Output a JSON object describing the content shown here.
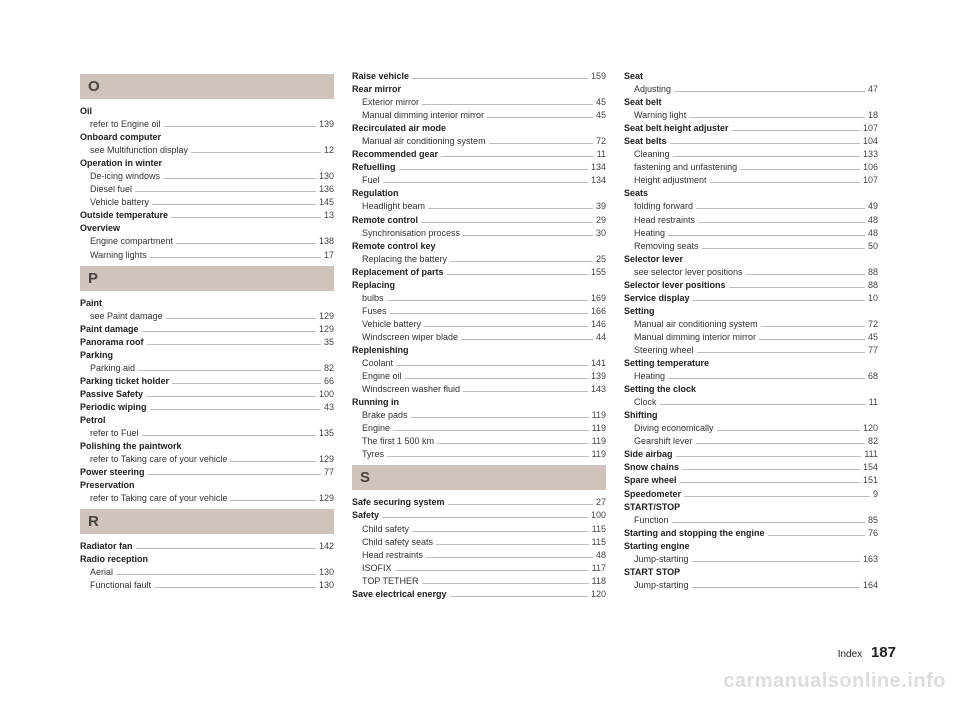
{
  "page_label": "Index",
  "page_number": "187",
  "watermark": "carmanualsonline.info",
  "style": {
    "bg": "#ffffff",
    "letter_bg": "#cfc3bb",
    "letter_fg": "#454545",
    "text_color": "#333333",
    "leader_color": "#bdbdbd",
    "font_size_entry": 9,
    "font_size_letter": 15,
    "font_size_pagenum": 15,
    "watermark_color": "#dddddd"
  },
  "columns": [
    {
      "sections": [
        {
          "letter": "O",
          "entries": [
            {
              "label": "Oil",
              "bold": true,
              "page": null
            },
            {
              "label": "refer to Engine oil",
              "bold": false,
              "page": "139",
              "sub": true
            },
            {
              "label": "Onboard computer",
              "bold": true,
              "page": null
            },
            {
              "label": "see Multifunction display",
              "bold": false,
              "page": "12",
              "sub": true
            },
            {
              "label": "Operation in winter",
              "bold": true,
              "page": null
            },
            {
              "label": "De-icing windows",
              "bold": false,
              "page": "130",
              "sub": true
            },
            {
              "label": "Diesel fuel",
              "bold": false,
              "page": "136",
              "sub": true
            },
            {
              "label": "Vehicle battery",
              "bold": false,
              "page": "145",
              "sub": true
            },
            {
              "label": "Outside temperature",
              "bold": true,
              "page": "13"
            },
            {
              "label": "Overview",
              "bold": true,
              "page": null
            },
            {
              "label": "Engine compartment",
              "bold": false,
              "page": "138",
              "sub": true
            },
            {
              "label": "Warning lights",
              "bold": false,
              "page": "17",
              "sub": true
            }
          ]
        },
        {
          "letter": "P",
          "entries": [
            {
              "label": "Paint",
              "bold": true,
              "page": null
            },
            {
              "label": "see Paint damage",
              "bold": false,
              "page": "129",
              "sub": true
            },
            {
              "label": "Paint damage",
              "bold": true,
              "page": "129"
            },
            {
              "label": "Panorama roof",
              "bold": true,
              "page": "35"
            },
            {
              "label": "Parking",
              "bold": true,
              "page": null
            },
            {
              "label": "Parking aid",
              "bold": false,
              "page": "82",
              "sub": true
            },
            {
              "label": "Parking ticket holder",
              "bold": true,
              "page": "66"
            },
            {
              "label": "Passive Safety",
              "bold": true,
              "page": "100"
            },
            {
              "label": "Periodic wiping",
              "bold": true,
              "page": "43"
            },
            {
              "label": "Petrol",
              "bold": true,
              "page": null
            },
            {
              "label": "refer to Fuel",
              "bold": false,
              "page": "135",
              "sub": true
            },
            {
              "label": "Polishing the paintwork",
              "bold": true,
              "page": null
            },
            {
              "label": "refer to Taking care of your vehicle",
              "bold": false,
              "page": "129",
              "sub": true
            },
            {
              "label": "Power steering",
              "bold": true,
              "page": "77"
            },
            {
              "label": "Preservation",
              "bold": true,
              "page": null
            },
            {
              "label": "refer to Taking care of your vehicle",
              "bold": false,
              "page": "129",
              "sub": true
            }
          ]
        },
        {
          "letter": "R",
          "entries": [
            {
              "label": "Radiator fan",
              "bold": true,
              "page": "142"
            },
            {
              "label": "Radio reception",
              "bold": true,
              "page": null
            },
            {
              "label": "Aerial",
              "bold": false,
              "page": "130",
              "sub": true
            },
            {
              "label": "Functional fault",
              "bold": false,
              "page": "130",
              "sub": true
            }
          ]
        }
      ]
    },
    {
      "sections": [
        {
          "letter": null,
          "entries": [
            {
              "label": "Raise vehicle",
              "bold": true,
              "page": "159"
            },
            {
              "label": "Rear mirror",
              "bold": true,
              "page": null
            },
            {
              "label": "Exterior mirror",
              "bold": false,
              "page": "45",
              "sub": true
            },
            {
              "label": "Manual dimming interior mirror",
              "bold": false,
              "page": "45",
              "sub": true
            },
            {
              "label": "Recirculated air mode",
              "bold": true,
              "page": null
            },
            {
              "label": "Manual air conditioning system",
              "bold": false,
              "page": "72",
              "sub": true
            },
            {
              "label": "Recommended gear",
              "bold": true,
              "page": "11"
            },
            {
              "label": "Refuelling",
              "bold": true,
              "page": "134"
            },
            {
              "label": "Fuel",
              "bold": false,
              "page": "134",
              "sub": true
            },
            {
              "label": "Regulation",
              "bold": true,
              "page": null
            },
            {
              "label": "Headlight beam",
              "bold": false,
              "page": "39",
              "sub": true
            },
            {
              "label": "Remote control",
              "bold": true,
              "page": "29"
            },
            {
              "label": "Synchronisation process",
              "bold": false,
              "page": "30",
              "sub": true
            },
            {
              "label": "Remote control key",
              "bold": true,
              "page": null
            },
            {
              "label": "Replacing the battery",
              "bold": false,
              "page": "25",
              "sub": true
            },
            {
              "label": "Replacement of parts",
              "bold": true,
              "page": "155"
            },
            {
              "label": "Replacing",
              "bold": true,
              "page": null
            },
            {
              "label": "bulbs",
              "bold": false,
              "page": "169",
              "sub": true
            },
            {
              "label": "Fuses",
              "bold": false,
              "page": "166",
              "sub": true
            },
            {
              "label": "Vehicle battery",
              "bold": false,
              "page": "146",
              "sub": true
            },
            {
              "label": "Windscreen wiper blade",
              "bold": false,
              "page": "44",
              "sub": true
            },
            {
              "label": "Replenishing",
              "bold": true,
              "page": null
            },
            {
              "label": "Coolant",
              "bold": false,
              "page": "141",
              "sub": true
            },
            {
              "label": "Engine oil",
              "bold": false,
              "page": "139",
              "sub": true
            },
            {
              "label": "Windscreen washer fluid",
              "bold": false,
              "page": "143",
              "sub": true
            },
            {
              "label": "Running in",
              "bold": true,
              "page": null
            },
            {
              "label": "Brake pads",
              "bold": false,
              "page": "119",
              "sub": true
            },
            {
              "label": "Engine",
              "bold": false,
              "page": "119",
              "sub": true
            },
            {
              "label": "The first 1 500 km",
              "bold": false,
              "page": "119",
              "sub": true
            },
            {
              "label": "Tyres",
              "bold": false,
              "page": "119",
              "sub": true
            }
          ]
        },
        {
          "letter": "S",
          "entries": [
            {
              "label": "Safe securing system",
              "bold": true,
              "page": "27"
            },
            {
              "label": "Safety",
              "bold": true,
              "page": "100"
            },
            {
              "label": "Child safety",
              "bold": false,
              "page": "115",
              "sub": true
            },
            {
              "label": "Child safety seats",
              "bold": false,
              "page": "115",
              "sub": true
            },
            {
              "label": "Head restraints",
              "bold": false,
              "page": "48",
              "sub": true
            },
            {
              "label": "ISOFIX",
              "bold": false,
              "page": "117",
              "sub": true
            },
            {
              "label": "TOP TETHER",
              "bold": false,
              "page": "118",
              "sub": true
            },
            {
              "label": "Save electrical energy",
              "bold": true,
              "page": "120"
            }
          ]
        }
      ]
    },
    {
      "sections": [
        {
          "letter": null,
          "entries": [
            {
              "label": "Seat",
              "bold": true,
              "page": null
            },
            {
              "label": "Adjusting",
              "bold": false,
              "page": "47",
              "sub": true
            },
            {
              "label": "Seat belt",
              "bold": true,
              "page": null
            },
            {
              "label": "Warning light",
              "bold": false,
              "page": "18",
              "sub": true
            },
            {
              "label": "Seat belt height adjuster",
              "bold": true,
              "page": "107"
            },
            {
              "label": "Seat belts",
              "bold": true,
              "page": "104"
            },
            {
              "label": "Cleaning",
              "bold": false,
              "page": "133",
              "sub": true
            },
            {
              "label": "fastening and unfastening",
              "bold": false,
              "page": "106",
              "sub": true
            },
            {
              "label": "Height adjustment",
              "bold": false,
              "page": "107",
              "sub": true
            },
            {
              "label": "Seats",
              "bold": true,
              "page": null
            },
            {
              "label": "folding forward",
              "bold": false,
              "page": "49",
              "sub": true
            },
            {
              "label": "Head restraints",
              "bold": false,
              "page": "48",
              "sub": true
            },
            {
              "label": "Heating",
              "bold": false,
              "page": "48",
              "sub": true
            },
            {
              "label": "Removing seats",
              "bold": false,
              "page": "50",
              "sub": true
            },
            {
              "label": "Selector lever",
              "bold": true,
              "page": null
            },
            {
              "label": "see selector lever positions",
              "bold": false,
              "page": "88",
              "sub": true
            },
            {
              "label": "Selector lever positions",
              "bold": true,
              "page": "88"
            },
            {
              "label": "Service display",
              "bold": true,
              "page": "10"
            },
            {
              "label": "Setting",
              "bold": true,
              "page": null
            },
            {
              "label": "Manual air conditioning system",
              "bold": false,
              "page": "72",
              "sub": true
            },
            {
              "label": "Manual dimming interior mirror",
              "bold": false,
              "page": "45",
              "sub": true
            },
            {
              "label": "Steering wheel",
              "bold": false,
              "page": "77",
              "sub": true
            },
            {
              "label": "Setting temperature",
              "bold": true,
              "page": null
            },
            {
              "label": "Heating",
              "bold": false,
              "page": "68",
              "sub": true
            },
            {
              "label": "Setting the clock",
              "bold": true,
              "page": null
            },
            {
              "label": "Clock",
              "bold": false,
              "page": "11",
              "sub": true
            },
            {
              "label": "Shifting",
              "bold": true,
              "page": null
            },
            {
              "label": "Diving economically",
              "bold": false,
              "page": "120",
              "sub": true
            },
            {
              "label": "Gearshift lever",
              "bold": false,
              "page": "82",
              "sub": true
            },
            {
              "label": "Side airbag",
              "bold": true,
              "page": "111"
            },
            {
              "label": "Snow chains",
              "bold": true,
              "page": "154"
            },
            {
              "label": "Spare wheel",
              "bold": true,
              "page": "151"
            },
            {
              "label": "Speedometer",
              "bold": true,
              "page": "9"
            },
            {
              "label": "START/STOP",
              "bold": true,
              "page": null
            },
            {
              "label": "Function",
              "bold": false,
              "page": "85",
              "sub": true
            },
            {
              "label": "Starting and stopping the engine",
              "bold": true,
              "page": "76"
            },
            {
              "label": "Starting engine",
              "bold": true,
              "page": null
            },
            {
              "label": "Jump-starting",
              "bold": false,
              "page": "163",
              "sub": true
            },
            {
              "label": "START STOP",
              "bold": true,
              "page": null
            },
            {
              "label": "Jump-starting",
              "bold": false,
              "page": "164",
              "sub": true
            }
          ]
        }
      ]
    }
  ]
}
